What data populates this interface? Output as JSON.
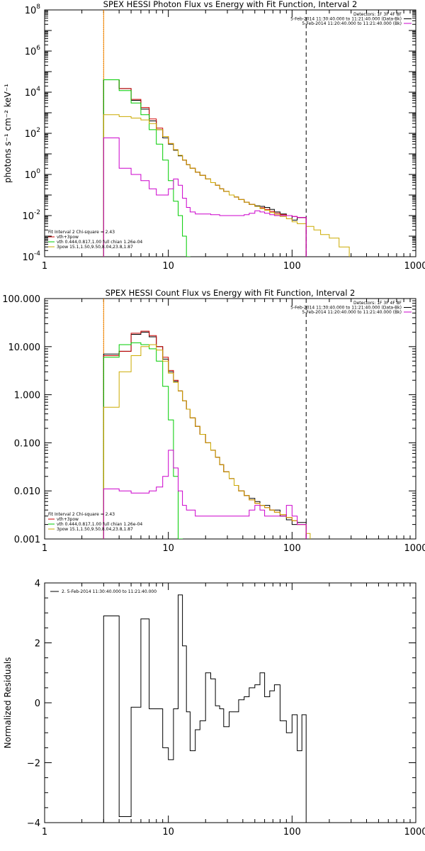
{
  "chart_data": [
    {
      "type": "line",
      "title": "SPEX HESSI Photon Flux vs Energy with Fit Function, Interval 2",
      "xlabel": "",
      "ylabel": "photons s⁻¹ cm⁻² keV⁻¹",
      "xscale": "log",
      "yscale": "log",
      "xlim": [
        1,
        1000
      ],
      "ylim": [
        0.0001,
        100000000
      ],
      "xticks": [
        {
          "v": 1,
          "label": "1"
        },
        {
          "v": 10,
          "label": "10"
        },
        {
          "v": 100,
          "label": "100"
        },
        {
          "v": 1000,
          "label": "1000"
        }
      ],
      "yticks": [
        {
          "v": 0.0001,
          "base": "10",
          "exp": "-4"
        },
        {
          "v": 0.01,
          "base": "10",
          "exp": "-2"
        },
        {
          "v": 1,
          "base": "10",
          "exp": "0"
        },
        {
          "v": 100,
          "base": "10",
          "exp": "2"
        },
        {
          "v": 10000,
          "base": "10",
          "exp": "4"
        },
        {
          "v": 1000000,
          "base": "10",
          "exp": "6"
        },
        {
          "v": 100000000,
          "base": "10",
          "exp": "8"
        }
      ],
      "vlines": [
        {
          "x": 3,
          "style": "dotted",
          "color": "#000000"
        },
        {
          "x": 3,
          "style": "solid",
          "color": "#ff8c00"
        },
        {
          "x": 130,
          "style": "dashed",
          "color": "#000000"
        }
      ],
      "legend_top": {
        "position": "top-right",
        "lines": [
          {
            "text": "Detectors: 1F 3F 4F 8F",
            "color": null
          },
          {
            "text": "5-Feb-2014 11:30:40.000 to 11:21:40.000 (Data-Bk)",
            "color": "#000000"
          },
          {
            "text": "5-Feb-2014 11:20:40.000 to 11:21:40.000 (Bk)",
            "color": "#cc00cc"
          }
        ]
      },
      "legend_fit": {
        "position": "bottom-left",
        "lines": [
          {
            "text": "Fit Interval 2   Chi-square = 2.43",
            "color": null
          },
          {
            "text": "vth+3pow",
            "color": "#cc0000"
          },
          {
            "text": "vth 0.444,0.817,1.00  full chian 1.26e-04",
            "color": "#00cc00"
          },
          {
            "text": "3pow 15.1,1.50,9.50,8.04,23.8,1.87",
            "color": "#ccaa00"
          }
        ]
      },
      "series": [
        {
          "color": "#000000",
          "start": 3,
          "edges": [
            3,
            4,
            5,
            6,
            7,
            8,
            9,
            10,
            11,
            12,
            13,
            14,
            15,
            16.5,
            18,
            20,
            22,
            24,
            26,
            28,
            31,
            34,
            37,
            41,
            45,
            50,
            55,
            60,
            66,
            72,
            80,
            90,
            100,
            110,
            130
          ],
          "values": [
            40000,
            15000,
            4000,
            1500,
            400,
            150,
            60,
            30,
            15,
            8,
            5,
            3,
            2,
            1.3,
            0.9,
            0.6,
            0.4,
            0.3,
            0.2,
            0.15,
            0.1,
            0.08,
            0.06,
            0.045,
            0.035,
            0.03,
            0.028,
            0.025,
            0.02,
            0.015,
            0.012,
            0.01,
            0.006,
            0.008
          ]
        },
        {
          "color": "#cc0000",
          "start": 3,
          "edges": [
            3,
            4,
            5,
            6,
            7,
            8,
            9,
            10,
            11,
            12,
            13,
            14,
            15,
            16.5,
            18,
            20,
            22,
            24,
            26,
            28,
            31,
            34,
            37,
            41,
            45,
            50,
            55,
            60,
            66,
            72,
            80,
            90,
            100,
            110,
            130
          ],
          "values": [
            40000,
            15000,
            4500,
            1800,
            500,
            180,
            70,
            32,
            16,
            8.5,
            5,
            3,
            2,
            1.3,
            0.9,
            0.6,
            0.4,
            0.3,
            0.2,
            0.15,
            0.1,
            0.08,
            0.06,
            0.045,
            0.035,
            0.028,
            0.024,
            0.02,
            0.016,
            0.013,
            0.011,
            0.01,
            0.009,
            0.008
          ]
        },
        {
          "color": "#00cc00",
          "start": 3,
          "edges": [
            3,
            4,
            5,
            6,
            7,
            8,
            9,
            10,
            11,
            12,
            13,
            14,
            15
          ],
          "values": [
            40000,
            12000,
            3000,
            800,
            150,
            30,
            5,
            0.5,
            0.05,
            0.01,
            0.001,
            0.0001
          ]
        },
        {
          "color": "#ccaa00",
          "start": 3,
          "edges": [
            3,
            4,
            5,
            6,
            7,
            8,
            9,
            10,
            11,
            12,
            13,
            14,
            15,
            16.5,
            18,
            20,
            22,
            24,
            26,
            28,
            31,
            34,
            37,
            41,
            45,
            50,
            55,
            60,
            66,
            72,
            80,
            90,
            100,
            110,
            130,
            150,
            170,
            200,
            240,
            290
          ],
          "values": [
            800,
            650,
            550,
            450,
            300,
            150,
            70,
            32,
            16,
            8.5,
            5,
            3,
            2,
            1.3,
            0.9,
            0.6,
            0.4,
            0.3,
            0.2,
            0.15,
            0.1,
            0.08,
            0.06,
            0.045,
            0.035,
            0.028,
            0.022,
            0.018,
            0.014,
            0.011,
            0.009,
            0.007,
            0.005,
            0.004,
            0.003,
            0.002,
            0.0012,
            0.0008,
            0.0003
          ]
        },
        {
          "color": "#cc00cc",
          "start": 3,
          "edges": [
            3,
            4,
            5,
            6,
            7,
            8,
            9,
            10,
            11,
            12,
            13,
            14,
            15,
            16.5,
            18,
            20,
            22,
            24,
            26,
            28,
            31,
            34,
            37,
            41,
            45,
            50,
            55,
            60,
            66,
            72,
            80,
            90,
            100,
            110,
            130
          ],
          "values": [
            60,
            2,
            1,
            0.5,
            0.2,
            0.1,
            0.1,
            0.2,
            0.6,
            0.3,
            0.07,
            0.025,
            0.015,
            0.012,
            0.012,
            0.012,
            0.011,
            0.011,
            0.01,
            0.01,
            0.01,
            0.01,
            0.01,
            0.011,
            0.013,
            0.017,
            0.015,
            0.013,
            0.011,
            0.01,
            0.01,
            0.01,
            0.009,
            0.008
          ]
        }
      ]
    },
    {
      "type": "line",
      "title": "SPEX HESSI Count Flux vs Energy with Fit Function, Interval 2",
      "xlabel": "",
      "ylabel": "",
      "xscale": "log",
      "yscale": "log",
      "xlim": [
        1,
        1000
      ],
      "ylim": [
        0.001,
        100
      ],
      "xticks": [
        {
          "v": 1,
          "label": "1"
        },
        {
          "v": 10,
          "label": "10"
        },
        {
          "v": 100,
          "label": "100"
        },
        {
          "v": 1000,
          "label": "1000"
        }
      ],
      "yticks": [
        {
          "v": 0.001,
          "label": "0.001"
        },
        {
          "v": 0.01,
          "label": "0.010"
        },
        {
          "v": 0.1,
          "label": "0.100"
        },
        {
          "v": 1,
          "label": "1.000"
        },
        {
          "v": 10,
          "label": "10.000"
        },
        {
          "v": 100,
          "label": "100.000"
        }
      ],
      "vlines": [
        {
          "x": 3,
          "style": "dotted",
          "color": "#000000"
        },
        {
          "x": 3,
          "style": "solid",
          "color": "#ff8c00"
        },
        {
          "x": 130,
          "style": "dashed",
          "color": "#000000"
        }
      ],
      "legend_top": {
        "position": "top-right",
        "lines": [
          {
            "text": "Detectors: 1F 3F 4F 8F",
            "color": null
          },
          {
            "text": "5-Feb-2014 11:30:40.000 to 11:21:40.000 (Data-Bk)",
            "color": "#000000"
          },
          {
            "text": "5-Feb-2014 11:20:40.000 to 11:21:40.000 (Bk)",
            "color": "#cc00cc"
          }
        ]
      },
      "legend_fit": {
        "position": "bottom-left",
        "lines": [
          {
            "text": "Fit Interval 2   Chi-square = 2.43",
            "color": null
          },
          {
            "text": "vth+3pow",
            "color": "#cc0000"
          },
          {
            "text": "vth 0.444,0.817,1.00  full chian 1.26e-04",
            "color": "#00cc00"
          },
          {
            "text": "3pow 15.1,1.50,9.50,8.04,23.8,1.87",
            "color": "#ccaa00"
          }
        ]
      },
      "series": [
        {
          "color": "#000000",
          "start": 3,
          "edges": [
            3,
            4,
            5,
            6,
            7,
            8,
            9,
            10,
            11,
            12,
            13,
            14,
            15,
            16.5,
            18,
            20,
            22,
            24,
            26,
            28,
            31,
            34,
            37,
            41,
            45,
            50,
            55,
            60,
            66,
            72,
            80,
            90,
            100,
            110,
            130
          ],
          "values": [
            7,
            8,
            18,
            20,
            16,
            10,
            5.5,
            3,
            1.9,
            1.2,
            0.75,
            0.5,
            0.33,
            0.22,
            0.15,
            0.1,
            0.07,
            0.05,
            0.035,
            0.025,
            0.018,
            0.013,
            0.01,
            0.008,
            0.007,
            0.006,
            0.005,
            0.005,
            0.004,
            0.004,
            0.003,
            0.0025,
            0.002,
            0.0022
          ]
        },
        {
          "color": "#cc0000",
          "start": 3,
          "edges": [
            3,
            4,
            5,
            6,
            7,
            8,
            9,
            10,
            11,
            12,
            13,
            14,
            15,
            16.5,
            18,
            20,
            22,
            24,
            26,
            28,
            31,
            34,
            37,
            41,
            45,
            50,
            55,
            60,
            66,
            72,
            80,
            90,
            100,
            110,
            130
          ],
          "values": [
            6.5,
            8,
            19,
            21,
            17,
            10,
            6,
            3.2,
            2,
            1.2,
            0.75,
            0.5,
            0.33,
            0.22,
            0.15,
            0.1,
            0.07,
            0.05,
            0.035,
            0.025,
            0.018,
            0.013,
            0.01,
            0.008,
            0.0065,
            0.0055,
            0.005,
            0.0045,
            0.004,
            0.0036,
            0.0032,
            0.0028,
            0.0024,
            0.002
          ]
        },
        {
          "color": "#00cc00",
          "start": 3,
          "edges": [
            3,
            4,
            5,
            6,
            7,
            8,
            9,
            10,
            11,
            12,
            13
          ],
          "values": [
            6,
            11,
            12,
            11,
            9,
            5,
            1.5,
            0.3,
            0.02,
            0.001
          ]
        },
        {
          "color": "#ccaa00",
          "start": 3,
          "edges": [
            3,
            4,
            5,
            6,
            7,
            8,
            9,
            10,
            11,
            12,
            13,
            14,
            15,
            16.5,
            18,
            20,
            22,
            24,
            26,
            28,
            31,
            34,
            37,
            41,
            45,
            50,
            55,
            60,
            66,
            72,
            80,
            90,
            100,
            110,
            130,
            140
          ],
          "values": [
            0.55,
            3,
            6.5,
            10,
            11,
            8.5,
            5,
            2.8,
            1.8,
            1.2,
            0.75,
            0.5,
            0.33,
            0.22,
            0.15,
            0.1,
            0.07,
            0.05,
            0.035,
            0.025,
            0.018,
            0.013,
            0.01,
            0.008,
            0.0065,
            0.0055,
            0.005,
            0.0045,
            0.004,
            0.0036,
            0.0032,
            0.0028,
            0.0024,
            0.002,
            0.0013
          ]
        },
        {
          "color": "#cc00cc",
          "start": 3,
          "edges": [
            3,
            4,
            5,
            6,
            7,
            8,
            9,
            10,
            11,
            12,
            13,
            14,
            15,
            16.5,
            18,
            20,
            22,
            24,
            26,
            28,
            31,
            34,
            37,
            41,
            45,
            50,
            55,
            60,
            66,
            72,
            80,
            90,
            100,
            110,
            130
          ],
          "values": [
            0.011,
            0.01,
            0.009,
            0.009,
            0.01,
            0.012,
            0.02,
            0.07,
            0.03,
            0.01,
            0.005,
            0.004,
            0.004,
            0.003,
            0.003,
            0.003,
            0.003,
            0.003,
            0.003,
            0.003,
            0.003,
            0.003,
            0.003,
            0.003,
            0.004,
            0.005,
            0.004,
            0.003,
            0.003,
            0.003,
            0.003,
            0.005,
            0.003,
            0.002
          ]
        }
      ]
    },
    {
      "type": "line",
      "title": "",
      "xlabel": "",
      "ylabel": "Normalized Residuals",
      "xscale": "log",
      "yscale": "linear",
      "xlim": [
        1,
        1000
      ],
      "ylim": [
        -4,
        4
      ],
      "xticks": [
        {
          "v": 1,
          "label": "1"
        },
        {
          "v": 10,
          "label": "10"
        },
        {
          "v": 100,
          "label": "100"
        },
        {
          "v": 1000,
          "label": "1000"
        }
      ],
      "yticks": [
        {
          "v": -4,
          "label": "−4"
        },
        {
          "v": -2,
          "label": "−2"
        },
        {
          "v": 0,
          "label": "0"
        },
        {
          "v": 2,
          "label": "2"
        },
        {
          "v": 4,
          "label": "4"
        }
      ],
      "legend_top": {
        "position": "top-left",
        "lines": [
          {
            "text": "2. 5-Feb-2014 11:30:40.000 to 11:21:40.000",
            "color": "#000000"
          }
        ]
      },
      "series": [
        {
          "color": "#000000",
          "start": 3,
          "edges": [
            3,
            4,
            5,
            6,
            7,
            8,
            9,
            10,
            11,
            12,
            13,
            14,
            15,
            16.5,
            18,
            20,
            22,
            24,
            26,
            28,
            31,
            34,
            37,
            41,
            45,
            50,
            55,
            60,
            66,
            72,
            80,
            90,
            100,
            110,
            120,
            130
          ],
          "values": [
            2.9,
            -3.8,
            -0.15,
            2.8,
            -0.2,
            -0.2,
            -1.5,
            -1.9,
            -0.2,
            3.6,
            1.9,
            -0.3,
            -1.6,
            -0.9,
            -0.6,
            1.0,
            0.8,
            -0.1,
            -0.2,
            -0.8,
            -0.3,
            -0.3,
            0.1,
            0.2,
            0.5,
            0.6,
            1.0,
            0.2,
            0.4,
            0.6,
            -0.6,
            -1.0,
            -0.4,
            -1.6,
            -0.4
          ]
        }
      ]
    }
  ]
}
